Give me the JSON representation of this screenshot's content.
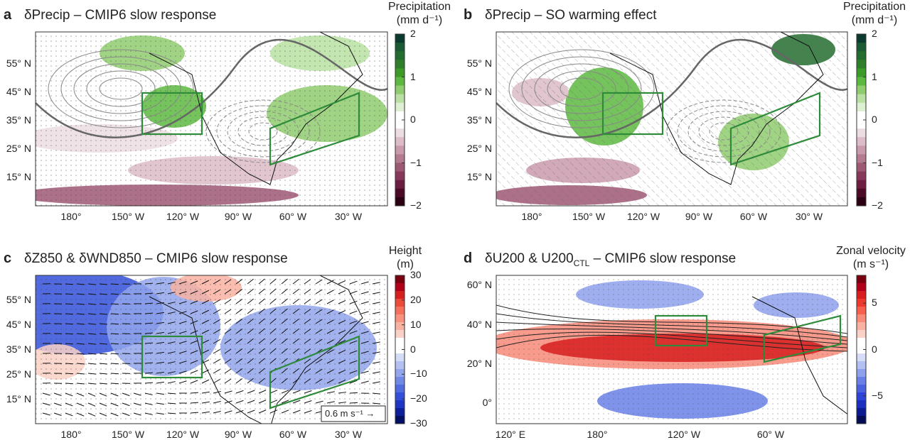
{
  "panels": [
    {
      "letter": "a",
      "title": "δPrecip – CMIP6 slow response",
      "cb_title": [
        "Precipitation",
        "(mm d⁻¹)"
      ],
      "lat_labels": [
        "55° N",
        "45° N",
        "35° N",
        "25° N",
        "15° N"
      ],
      "lon_labels": [
        "180°",
        "150° W",
        "120° W",
        "90° W",
        "60° W",
        "30° W"
      ],
      "cb_ticks": [
        "2",
        "1",
        "0",
        "−1",
        "−2"
      ],
      "cb_colors": "precip"
    },
    {
      "letter": "b",
      "title": "δPrecip – SO warming effect",
      "cb_title": [
        "Precipitation",
        "(mm d⁻¹)"
      ],
      "lat_labels": [
        "55° N",
        "45° N",
        "35° N",
        "25° N",
        "15° N"
      ],
      "lon_labels": [
        "180°",
        "150° W",
        "120° W",
        "90° W",
        "60° W",
        "30° W"
      ],
      "cb_ticks": [
        "2",
        "1",
        "0",
        "−1",
        "−2"
      ],
      "cb_colors": "precip"
    },
    {
      "letter": "c",
      "title": "δZ850 & δWND850 – CMIP6 slow response",
      "cb_title": [
        "Height",
        "(m)"
      ],
      "lat_labels": [
        "55° N",
        "45° N",
        "35° N",
        "25° N",
        "15° N"
      ],
      "lon_labels": [
        "180°",
        "150° W",
        "120° W",
        "90° W",
        "60° W",
        "30° W"
      ],
      "cb_ticks": [
        "30",
        "20",
        "10",
        "0",
        "−10",
        "−20",
        "−30"
      ],
      "cb_colors": "height",
      "vector_key": "0.6 m s⁻¹"
    },
    {
      "letter": "d",
      "title": "δU200 & U200",
      "title_sub": "CTL",
      "title_suffix": " – CMIP6 slow response",
      "cb_title": [
        "Zonal velocity",
        "(m s⁻¹)"
      ],
      "lat_labels": [
        "60° N",
        "40° N",
        "20° N",
        "0°"
      ],
      "lon_labels": [
        "120° E",
        "180°",
        "120° W",
        "60° W"
      ],
      "cb_ticks": [
        "5",
        "0",
        "−5"
      ],
      "cb_colors": "zonal"
    }
  ],
  "colors": {
    "precip": [
      "#0b3a2e",
      "#1a5a34",
      "#236c2f",
      "#2f7f2a",
      "#3c9a27",
      "#5db83f",
      "#8fcc6f",
      "#b9e0a2",
      "#dcefd2",
      "#ffffff",
      "#ffffff",
      "#ecdde3",
      "#dcbcc8",
      "#c99aab",
      "#b47a8f",
      "#9d5873",
      "#86385a",
      "#6b1e40",
      "#4b0a26",
      "#2a0012"
    ],
    "height": [
      "#7a0010",
      "#b3001a",
      "#d81f1f",
      "#ec4a3a",
      "#f56f5a",
      "#f8917e",
      "#f9b1a2",
      "#fad1c6",
      "#ffffff",
      "#ffffff",
      "#d3dcf7",
      "#b2c0f2",
      "#91a4ec",
      "#7088e6",
      "#516ce0",
      "#3350da",
      "#1e36c4",
      "#0d1f9a",
      "#030f63"
    ],
    "zonal": [
      "#7a0010",
      "#b3001a",
      "#d81f1f",
      "#ee3a2e",
      "#f5604f",
      "#f78a78",
      "#f9b1a2",
      "#fad1c6",
      "#ffffff",
      "#ffffff",
      "#d6dcf7",
      "#b2c0f2",
      "#8ea0ec",
      "#6a80e6",
      "#4a62e0",
      "#2c44d8",
      "#1a2ec0",
      "#0b1a90",
      "#030c55"
    ],
    "box": "#2e8b3a"
  }
}
